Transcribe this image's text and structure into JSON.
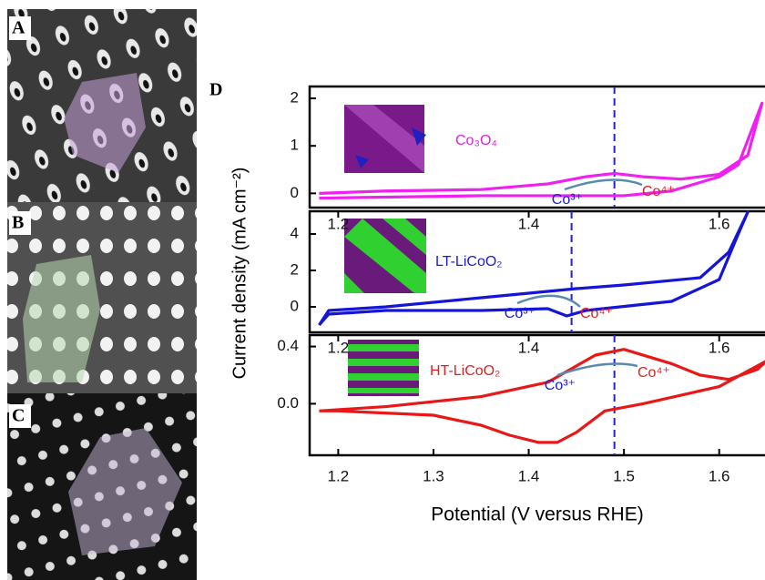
{
  "panel_labels": [
    "A",
    "B",
    "C",
    "D"
  ],
  "chart_data": [
    {
      "type": "line",
      "ylabel": "Current density (mA cm⁻²)",
      "label": "Co₃O₄",
      "label_color": "#e020e0",
      "xlim": [
        1.17,
        1.65
      ],
      "ylim": [
        -0.3,
        2.25
      ],
      "yticks": [
        0,
        1,
        2
      ],
      "vline": 1.49,
      "annotations": [
        "Co³⁺",
        "Co⁴⁺"
      ],
      "x": [
        1.18,
        1.25,
        1.35,
        1.42,
        1.46,
        1.49,
        1.52,
        1.56,
        1.6,
        1.63,
        1.645,
        1.62,
        1.6,
        1.55,
        1.5,
        1.45,
        1.35,
        1.25,
        1.18
      ],
      "series": [
        {
          "name": "Co₃O₄",
          "color": "#f020f0",
          "values": [
            0.0,
            0.05,
            0.08,
            0.2,
            0.35,
            0.42,
            0.35,
            0.3,
            0.4,
            0.8,
            1.9,
            0.6,
            0.35,
            0.05,
            -0.05,
            -0.05,
            -0.05,
            -0.08,
            -0.1
          ]
        }
      ]
    },
    {
      "type": "line",
      "label": "LT-LiCoO₂",
      "label_color": "#1a1adc",
      "xlim": [
        1.17,
        1.65
      ],
      "ylim": [
        -1.4,
        5.25
      ],
      "yticks": [
        0,
        2,
        4
      ],
      "top_xticks": [
        1.2,
        1.4,
        1.6
      ],
      "vline": 1.445,
      "annotations": [
        "Co³⁺",
        "Co⁴⁺"
      ],
      "x": [
        1.18,
        1.19,
        1.25,
        1.35,
        1.42,
        1.44,
        1.46,
        1.55,
        1.6,
        1.62,
        1.63,
        1.61,
        1.58,
        1.5,
        1.45,
        1.35,
        1.25,
        1.19,
        1.18
      ],
      "series": [
        {
          "name": "LT-LiCoO₂",
          "color": "#1515d8",
          "values": [
            -1.0,
            -0.4,
            -0.2,
            -0.2,
            -0.1,
            -0.5,
            -0.2,
            0.3,
            1.5,
            4.0,
            5.2,
            3.0,
            1.6,
            1.2,
            1.0,
            0.5,
            0.0,
            -0.2,
            -1.0
          ]
        }
      ]
    },
    {
      "type": "line",
      "label": "HT-LiCoO₂",
      "label_color": "#e02020",
      "xlabel": "Potential (V versus RHE)",
      "xlim": [
        1.17,
        1.65
      ],
      "ylim": [
        -0.36,
        0.48
      ],
      "yticks": [
        {
          "value": 0.0,
          "label": "0.0"
        },
        0.4
      ],
      "top_xticks": [
        1.2,
        1.4,
        1.6
      ],
      "xticks": [
        1.2,
        1.3,
        1.4,
        1.5,
        1.6
      ],
      "vline": 1.49,
      "annotations": [
        "Co³⁺",
        "Co⁴⁺"
      ],
      "x": [
        1.18,
        1.25,
        1.35,
        1.42,
        1.47,
        1.5,
        1.55,
        1.58,
        1.61,
        1.64,
        1.65,
        1.6,
        1.52,
        1.48,
        1.45,
        1.43,
        1.41,
        1.38,
        1.35,
        1.3,
        1.2,
        1.18
      ],
      "series": [
        {
          "name": "HT-LiCoO₂",
          "color": "#e81818",
          "values": [
            -0.05,
            -0.02,
            0.05,
            0.15,
            0.34,
            0.38,
            0.28,
            0.2,
            0.17,
            0.24,
            0.3,
            0.12,
            0.0,
            -0.05,
            -0.2,
            -0.27,
            -0.27,
            -0.22,
            -0.15,
            -0.08,
            -0.05,
            -0.05
          ]
        }
      ]
    }
  ]
}
